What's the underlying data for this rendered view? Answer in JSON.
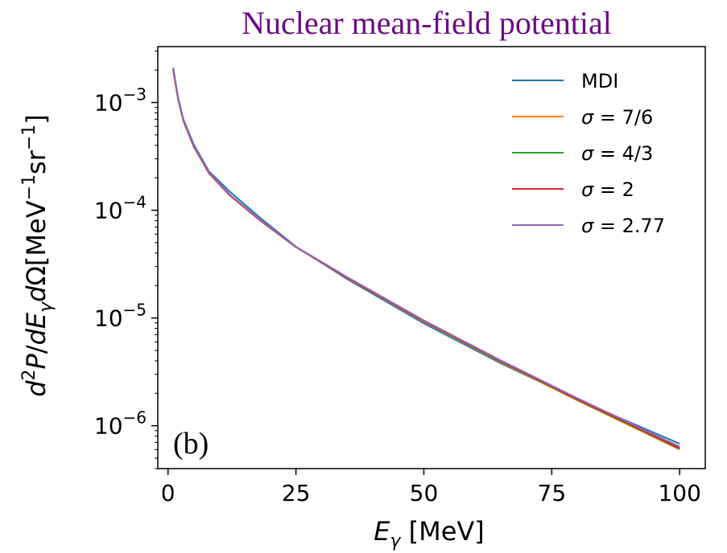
{
  "chart_data": {
    "type": "line",
    "title": "Nuclear mean-field potential",
    "title_color": "#6a0d83",
    "panel_label": "(b)",
    "xlabel": "E_γ [MeV]",
    "ylabel": "d²P/dE_γdΩ[MeV⁻¹sr⁻¹]",
    "xlim": [
      -2,
      105
    ],
    "ylim": [
      4e-07,
      0.0033
    ],
    "yscale": "log",
    "grid": false,
    "legend_position": "top-right",
    "x_ticks": [
      0,
      25,
      50,
      75,
      100
    ],
    "y_ticks": [
      {
        "value": 1e-06,
        "base": "10",
        "exp": "−6"
      },
      {
        "value": 1e-05,
        "base": "10",
        "exp": "−5"
      },
      {
        "value": 0.0001,
        "base": "10",
        "exp": "−4"
      },
      {
        "value": 0.001,
        "base": "10",
        "exp": "−3"
      }
    ],
    "x": [
      1,
      2,
      3,
      5,
      8,
      12,
      18,
      25,
      35,
      50,
      65,
      80,
      100
    ],
    "series": [
      {
        "name": "MDI",
        "label_parts": [
          "MDI"
        ],
        "color": "#1f77b4",
        "values": [
          0.0021,
          0.0011,
          0.0007,
          0.00041,
          0.00023,
          0.00015,
          8.5e-05,
          4.6e-05,
          2.3e-05,
          8.9e-06,
          3.8e-06,
          1.75e-06,
          6.8e-07
        ]
      },
      {
        "name": "σ = 7/6",
        "label_parts": [
          "σ",
          " = 7/6"
        ],
        "color": "#ff7f0e",
        "values": [
          0.002,
          0.00105,
          0.00067,
          0.00039,
          0.00022,
          0.000138,
          8e-05,
          4.55e-05,
          2.35e-05,
          9.2e-06,
          3.9e-06,
          1.72e-06,
          6e-07
        ]
      },
      {
        "name": "σ = 4/3",
        "label_parts": [
          "σ",
          " = 4/3"
        ],
        "color": "#2ca02c",
        "values": [
          0.002,
          0.00106,
          0.00068,
          0.000395,
          0.000222,
          0.00014,
          8.1e-05,
          4.56e-05,
          2.36e-05,
          9.3e-06,
          3.95e-06,
          1.74e-06,
          6.1e-07
        ]
      },
      {
        "name": "σ = 2",
        "label_parts": [
          "σ",
          " = 2"
        ],
        "color": "#d62728",
        "values": [
          0.002,
          0.00106,
          0.000675,
          0.000392,
          0.000221,
          0.000139,
          8.05e-05,
          4.55e-05,
          2.37e-05,
          9.35e-06,
          4e-06,
          1.76e-06,
          6.2e-07
        ]
      },
      {
        "name": "σ = 2.77",
        "label_parts": [
          "σ",
          " = 2.77"
        ],
        "color": "#9467bd",
        "values": [
          0.00205,
          0.00108,
          0.00069,
          0.0004,
          0.000225,
          0.000141,
          8.15e-05,
          4.58e-05,
          2.4e-05,
          9.5e-06,
          4.05e-06,
          1.8e-06,
          6.4e-07
        ]
      }
    ]
  }
}
